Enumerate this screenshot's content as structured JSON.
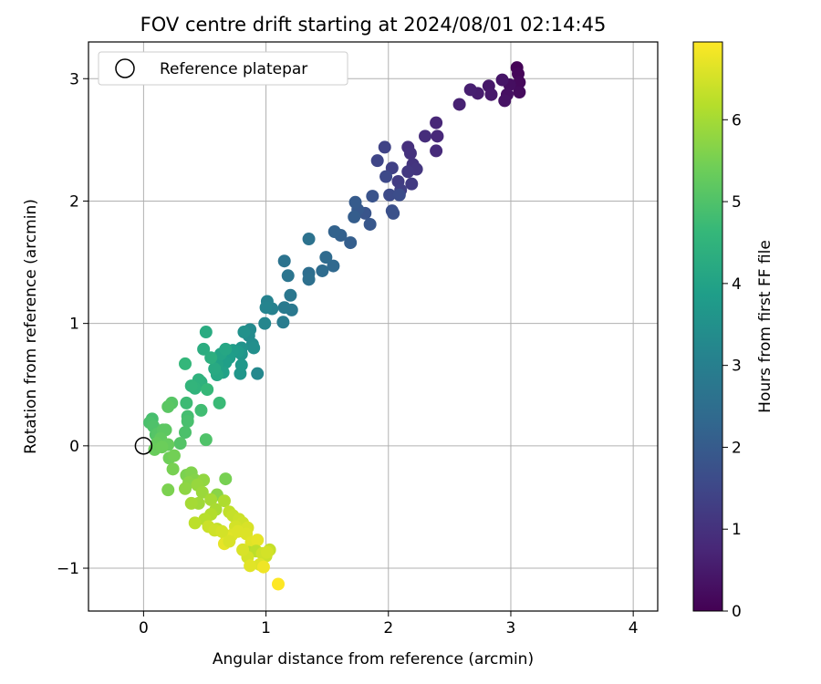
{
  "chart_data": {
    "type": "scatter",
    "title": "FOV centre drift starting at 2024/08/01 02:14:45",
    "xlabel": "Angular distance from reference (arcmin)",
    "ylabel": "Rotation from reference (arcmin)",
    "xlim": [
      -0.45,
      4.2
    ],
    "ylim": [
      -1.35,
      3.3
    ],
    "xticks": [
      0,
      1,
      2,
      3,
      4
    ],
    "xtick_labels": [
      "0",
      "1",
      "2",
      "3",
      "4"
    ],
    "yticks": [
      -1,
      0,
      1,
      2,
      3
    ],
    "ytick_labels": [
      "−1",
      "0",
      "1",
      "2",
      "3"
    ],
    "grid": true,
    "legend": {
      "position": "top-left",
      "entries": [
        "Reference platepar"
      ]
    },
    "reference_point": {
      "x": 0,
      "y": 0
    },
    "colorbar": {
      "label": "Hours from first FF file",
      "colormap": "viridis",
      "range": [
        0,
        6.95
      ],
      "ticks": [
        0,
        1,
        2,
        3,
        4,
        5,
        6
      ],
      "tick_labels": [
        "0",
        "1",
        "2",
        "3",
        "4",
        "5",
        "6"
      ]
    },
    "colormap_stops": [
      "#440154",
      "#482878",
      "#3e4989",
      "#31688e",
      "#26828e",
      "#1f9e89",
      "#35b779",
      "#6ece58",
      "#b5de2b",
      "#fde725"
    ],
    "points": [
      [
        3.05,
        3.09,
        0.05
      ],
      [
        3.06,
        3.04,
        0.1
      ],
      [
        3.07,
        2.97,
        0.15
      ],
      [
        3.07,
        2.89,
        0.2
      ],
      [
        2.99,
        2.95,
        0.25
      ],
      [
        2.97,
        2.87,
        0.3
      ],
      [
        2.95,
        2.82,
        0.35
      ],
      [
        2.93,
        2.99,
        0.4
      ],
      [
        2.82,
        2.94,
        0.45
      ],
      [
        2.84,
        2.87,
        0.5
      ],
      [
        2.73,
        2.88,
        0.55
      ],
      [
        2.67,
        2.91,
        0.6
      ],
      [
        2.58,
        2.79,
        0.65
      ],
      [
        2.39,
        2.64,
        0.75
      ],
      [
        2.4,
        2.53,
        0.8
      ],
      [
        2.39,
        2.41,
        0.85
      ],
      [
        2.3,
        2.53,
        0.9
      ],
      [
        2.16,
        2.44,
        0.95
      ],
      [
        2.18,
        2.39,
        1.0
      ],
      [
        2.2,
        2.3,
        1.05
      ],
      [
        2.23,
        2.26,
        1.1
      ],
      [
        2.16,
        2.24,
        1.15
      ],
      [
        2.19,
        2.14,
        1.2
      ],
      [
        2.08,
        2.16,
        1.25
      ],
      [
        2.1,
        2.09,
        1.3
      ],
      [
        2.03,
        2.27,
        1.35
      ],
      [
        1.97,
        2.44,
        1.4
      ],
      [
        1.91,
        2.33,
        1.45
      ],
      [
        1.98,
        2.2,
        1.55
      ],
      [
        2.01,
        2.05,
        1.6
      ],
      [
        2.09,
        2.05,
        1.65
      ],
      [
        2.03,
        1.92,
        1.7
      ],
      [
        2.04,
        1.9,
        1.75
      ],
      [
        1.87,
        2.04,
        1.8
      ],
      [
        1.81,
        1.9,
        1.85
      ],
      [
        1.85,
        1.81,
        1.9
      ],
      [
        1.75,
        1.93,
        1.95
      ],
      [
        1.73,
        1.99,
        2.0
      ],
      [
        1.72,
        1.87,
        2.05
      ],
      [
        1.69,
        1.66,
        2.1
      ],
      [
        1.61,
        1.72,
        2.15
      ],
      [
        1.56,
        1.75,
        2.2
      ],
      [
        1.55,
        1.47,
        2.35
      ],
      [
        1.49,
        1.54,
        2.4
      ],
      [
        1.46,
        1.43,
        2.45
      ],
      [
        1.35,
        1.41,
        2.5
      ],
      [
        1.35,
        1.36,
        2.55
      ],
      [
        1.35,
        1.69,
        2.6
      ],
      [
        1.15,
        1.51,
        2.65
      ],
      [
        1.18,
        1.39,
        2.7
      ],
      [
        1.2,
        1.23,
        2.75
      ],
      [
        1.21,
        1.11,
        2.8
      ],
      [
        1.15,
        1.13,
        2.85
      ],
      [
        1.14,
        1.01,
        2.9
      ],
      [
        1.05,
        1.12,
        3.05
      ],
      [
        1.01,
        1.18,
        3.1
      ],
      [
        1.0,
        1.13,
        3.15
      ],
      [
        0.99,
        1.0,
        3.2
      ],
      [
        0.93,
        0.59,
        3.25
      ],
      [
        0.87,
        0.95,
        3.3
      ],
      [
        0.86,
        0.9,
        3.35
      ],
      [
        0.89,
        0.83,
        3.4
      ],
      [
        0.9,
        0.8,
        3.45
      ],
      [
        0.82,
        0.93,
        3.5
      ],
      [
        0.8,
        0.8,
        3.55
      ],
      [
        0.8,
        0.75,
        3.6
      ],
      [
        0.79,
        0.59,
        3.65
      ],
      [
        0.8,
        0.66,
        3.7
      ],
      [
        0.77,
        0.77,
        3.75
      ],
      [
        0.73,
        0.78,
        3.8
      ],
      [
        0.7,
        0.72,
        3.85
      ],
      [
        0.67,
        0.68,
        3.9
      ],
      [
        0.65,
        0.6,
        3.95
      ],
      [
        0.6,
        0.67,
        4.0
      ],
      [
        0.63,
        0.75,
        4.05
      ],
      [
        0.67,
        0.79,
        4.1
      ],
      [
        0.6,
        0.58,
        4.15
      ],
      [
        0.58,
        0.63,
        4.2
      ],
      [
        0.51,
        0.93,
        4.25
      ],
      [
        0.49,
        0.79,
        4.3
      ],
      [
        0.55,
        0.72,
        4.35
      ],
      [
        0.47,
        0.52,
        4.4
      ],
      [
        0.45,
        0.54,
        4.45
      ],
      [
        0.42,
        0.47,
        4.5
      ],
      [
        0.39,
        0.49,
        4.55
      ],
      [
        0.34,
        0.67,
        4.6
      ],
      [
        0.52,
        0.46,
        4.65
      ],
      [
        0.62,
        0.35,
        4.7
      ],
      [
        0.35,
        0.35,
        4.75
      ],
      [
        0.47,
        0.29,
        4.8
      ],
      [
        0.36,
        0.24,
        4.85
      ],
      [
        0.36,
        0.2,
        4.9
      ],
      [
        0.34,
        0.11,
        4.95
      ],
      [
        0.51,
        0.05,
        5.0
      ],
      [
        0.3,
        0.02,
        5.05
      ],
      [
        0.23,
        0.35,
        5.1
      ],
      [
        0.2,
        0.32,
        5.15
      ],
      [
        0.07,
        0.22,
        4.88
      ],
      [
        0.05,
        0.19,
        4.93
      ],
      [
        0.08,
        0.16,
        4.98
      ],
      [
        0.1,
        0.09,
        5.03
      ],
      [
        0.12,
        0.1,
        5.08
      ],
      [
        0.16,
        0.13,
        5.13
      ],
      [
        0.18,
        0.13,
        5.18
      ],
      [
        0.14,
        0.06,
        5.23
      ],
      [
        0.11,
        0.02,
        5.28
      ],
      [
        0.2,
        0.01,
        5.3
      ],
      [
        0.09,
        -0.03,
        5.33
      ],
      [
        0.15,
        -0.01,
        5.36
      ],
      [
        0.21,
        -0.1,
        5.4
      ],
      [
        0.25,
        -0.08,
        5.45
      ],
      [
        0.24,
        -0.19,
        5.5
      ],
      [
        0.2,
        -0.36,
        5.55
      ],
      [
        0.35,
        -0.24,
        5.55
      ],
      [
        0.39,
        -0.22,
        5.6
      ],
      [
        0.42,
        -0.28,
        5.65
      ],
      [
        0.37,
        -0.3,
        5.7
      ],
      [
        0.34,
        -0.35,
        5.75
      ],
      [
        0.49,
        -0.28,
        5.8
      ],
      [
        0.44,
        -0.32,
        5.85
      ],
      [
        0.48,
        -0.38,
        5.9
      ],
      [
        0.45,
        -0.47,
        5.95
      ],
      [
        0.39,
        -0.47,
        6.0
      ],
      [
        0.67,
        -0.27,
        5.5
      ],
      [
        0.6,
        -0.4,
        5.7
      ],
      [
        0.55,
        -0.44,
        6.0
      ],
      [
        0.59,
        -0.52,
        6.05
      ],
      [
        0.66,
        -0.45,
        6.1
      ],
      [
        0.55,
        -0.56,
        6.15
      ],
      [
        0.5,
        -0.6,
        6.2
      ],
      [
        0.42,
        -0.63,
        6.25
      ],
      [
        0.7,
        -0.54,
        6.3
      ],
      [
        0.73,
        -0.57,
        6.35
      ],
      [
        0.78,
        -0.6,
        6.4
      ],
      [
        0.81,
        -0.63,
        6.45
      ],
      [
        0.75,
        -0.66,
        6.5
      ],
      [
        0.85,
        -0.67,
        6.55
      ],
      [
        0.77,
        -0.7,
        6.6
      ],
      [
        0.72,
        -0.73,
        6.6
      ],
      [
        0.68,
        -0.75,
        6.65
      ],
      [
        0.66,
        -0.8,
        6.7
      ],
      [
        0.6,
        -0.68,
        6.3
      ],
      [
        0.53,
        -0.66,
        6.4
      ],
      [
        0.58,
        -0.69,
        6.45
      ],
      [
        0.64,
        -0.7,
        6.5
      ],
      [
        0.7,
        -0.78,
        6.55
      ],
      [
        0.84,
        -0.72,
        6.6
      ],
      [
        0.88,
        -0.79,
        6.65
      ],
      [
        0.93,
        -0.77,
        6.7
      ],
      [
        0.86,
        -0.87,
        6.2
      ],
      [
        0.92,
        -0.86,
        6.25
      ],
      [
        0.99,
        -0.89,
        6.3
      ],
      [
        1.03,
        -0.85,
        6.35
      ],
      [
        1.0,
        -0.9,
        6.4
      ],
      [
        0.97,
        -0.88,
        6.45
      ],
      [
        0.85,
        -0.91,
        6.5
      ],
      [
        0.81,
        -0.85,
        6.55
      ],
      [
        0.95,
        -0.97,
        6.6
      ],
      [
        0.87,
        -0.98,
        6.65
      ],
      [
        1.01,
        -0.87,
        6.5
      ],
      [
        0.98,
        -0.99,
        6.8
      ],
      [
        1.1,
        -1.13,
        6.95
      ]
    ]
  }
}
